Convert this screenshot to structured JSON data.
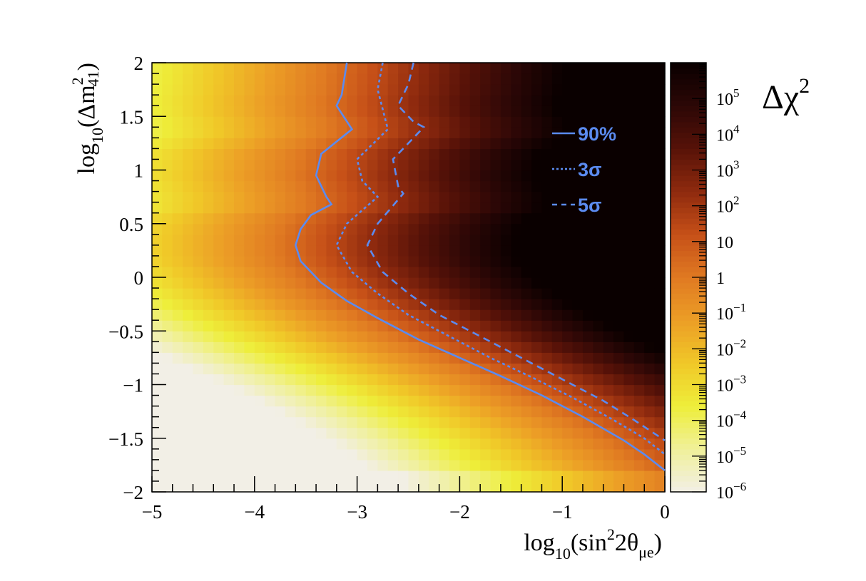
{
  "chart_data": {
    "type": "heatmap",
    "title": "",
    "x_axis": {
      "label_parts": {
        "base": "log",
        "base_sub": "10",
        "open": "(sin",
        "sup": "2",
        "mid": "2θ",
        "sub": "μe",
        "close": ")"
      },
      "range": [
        -5,
        0
      ],
      "ticks": [
        -5,
        -4,
        -3,
        -2,
        -1,
        0
      ],
      "tick_labels": [
        "−5",
        "−4",
        "−3",
        "−2",
        "−1",
        "0"
      ]
    },
    "y_axis": {
      "label_parts": {
        "base": "log",
        "base_sub": "10",
        "open": "(Δm",
        "sup": "2",
        "sub": "41",
        "close": ")"
      },
      "range": [
        -2,
        2
      ],
      "ticks": [
        -2,
        -1.5,
        -1,
        -0.5,
        0,
        0.5,
        1,
        1.5,
        2
      ],
      "tick_labels": [
        "−2",
        "−1.5",
        "−1",
        "−0.5",
        "0",
        "0.5",
        "1",
        "1.5",
        "2"
      ]
    },
    "z_axis": {
      "title_main": "Δχ",
      "title_sup": "2",
      "scale": "log",
      "range": [
        1e-06,
        1000000.0
      ],
      "labels": [
        {
          "value": 1e-06,
          "base": "10",
          "exp": "−6"
        },
        {
          "value": 1e-05,
          "base": "10",
          "exp": "−5"
        },
        {
          "value": 0.0001,
          "base": "10",
          "exp": "−4"
        },
        {
          "value": 0.001,
          "base": "10",
          "exp": "−3"
        },
        {
          "value": 0.01,
          "base": "10",
          "exp": "−2"
        },
        {
          "value": 0.1,
          "base": "10",
          "exp": "−1"
        },
        {
          "value": 1,
          "base": "1",
          "exp": ""
        },
        {
          "value": 10,
          "base": "10",
          "exp": ""
        },
        {
          "value": 100.0,
          "base": "10",
          "exp": "2"
        },
        {
          "value": 1000.0,
          "base": "10",
          "exp": "3"
        },
        {
          "value": 10000.0,
          "base": "10",
          "exp": "4"
        },
        {
          "value": 100000.0,
          "base": "10",
          "exp": "5"
        }
      ]
    },
    "bins": {
      "nx": 50,
      "ny": 40
    },
    "contours": [
      {
        "name": "90%",
        "style": "solid",
        "points": [
          [
            -3.1,
            2.0
          ],
          [
            -3.15,
            1.7
          ],
          [
            -3.2,
            1.6
          ],
          [
            -3.05,
            1.38
          ],
          [
            -3.35,
            1.15
          ],
          [
            -3.4,
            0.95
          ],
          [
            -3.3,
            0.75
          ],
          [
            -3.25,
            0.68
          ],
          [
            -3.45,
            0.58
          ],
          [
            -3.55,
            0.45
          ],
          [
            -3.6,
            0.3
          ],
          [
            -3.55,
            0.15
          ],
          [
            -3.35,
            -0.05
          ],
          [
            -3.1,
            -0.22
          ],
          [
            -2.8,
            -0.38
          ],
          [
            -2.4,
            -0.58
          ],
          [
            -2.0,
            -0.75
          ],
          [
            -1.6,
            -0.92
          ],
          [
            -1.2,
            -1.1
          ],
          [
            -0.8,
            -1.3
          ],
          [
            -0.4,
            -1.52
          ],
          [
            -0.2,
            -1.65
          ],
          [
            0.0,
            -1.8
          ]
        ]
      },
      {
        "name": "3σ",
        "style": "dotted",
        "points": [
          [
            -2.75,
            2.0
          ],
          [
            -2.8,
            1.75
          ],
          [
            -2.7,
            1.38
          ],
          [
            -3.0,
            1.1
          ],
          [
            -2.95,
            0.9
          ],
          [
            -2.8,
            0.75
          ],
          [
            -3.1,
            0.5
          ],
          [
            -3.2,
            0.3
          ],
          [
            -3.05,
            0.05
          ],
          [
            -2.8,
            -0.15
          ],
          [
            -2.5,
            -0.35
          ],
          [
            -2.1,
            -0.55
          ],
          [
            -1.7,
            -0.75
          ],
          [
            -1.3,
            -0.93
          ],
          [
            -0.9,
            -1.12
          ],
          [
            -0.5,
            -1.33
          ],
          [
            -0.2,
            -1.5
          ],
          [
            0.0,
            -1.65
          ]
        ]
      },
      {
        "name": "5σ",
        "style": "dashed",
        "points": [
          [
            -2.45,
            2.0
          ],
          [
            -2.5,
            1.8
          ],
          [
            -2.6,
            1.6
          ],
          [
            -2.45,
            1.45
          ],
          [
            -2.35,
            1.4
          ],
          [
            -2.65,
            1.1
          ],
          [
            -2.6,
            0.85
          ],
          [
            -2.55,
            0.78
          ],
          [
            -2.8,
            0.5
          ],
          [
            -2.9,
            0.3
          ],
          [
            -2.75,
            0.05
          ],
          [
            -2.5,
            -0.15
          ],
          [
            -2.2,
            -0.35
          ],
          [
            -1.8,
            -0.55
          ],
          [
            -1.4,
            -0.75
          ],
          [
            -1.0,
            -0.95
          ],
          [
            -0.6,
            -1.15
          ],
          [
            -0.3,
            -1.33
          ],
          [
            0.0,
            -1.52
          ]
        ]
      }
    ],
    "legend": {
      "position": "top-right",
      "entries": [
        {
          "label": "90%",
          "style": "solid"
        },
        {
          "label": "3σ",
          "style": "dotted"
        },
        {
          "label": "5σ",
          "style": "dashed"
        }
      ]
    },
    "colors": {
      "contour": "#5b8bf0",
      "scale": [
        "#f2efe6",
        "#f0f09a",
        "#eeee3a",
        "#f0c828",
        "#ec9e26",
        "#e07a22",
        "#c65018",
        "#8f2a0e",
        "#571208",
        "#2c0706",
        "#0a0000"
      ]
    }
  }
}
